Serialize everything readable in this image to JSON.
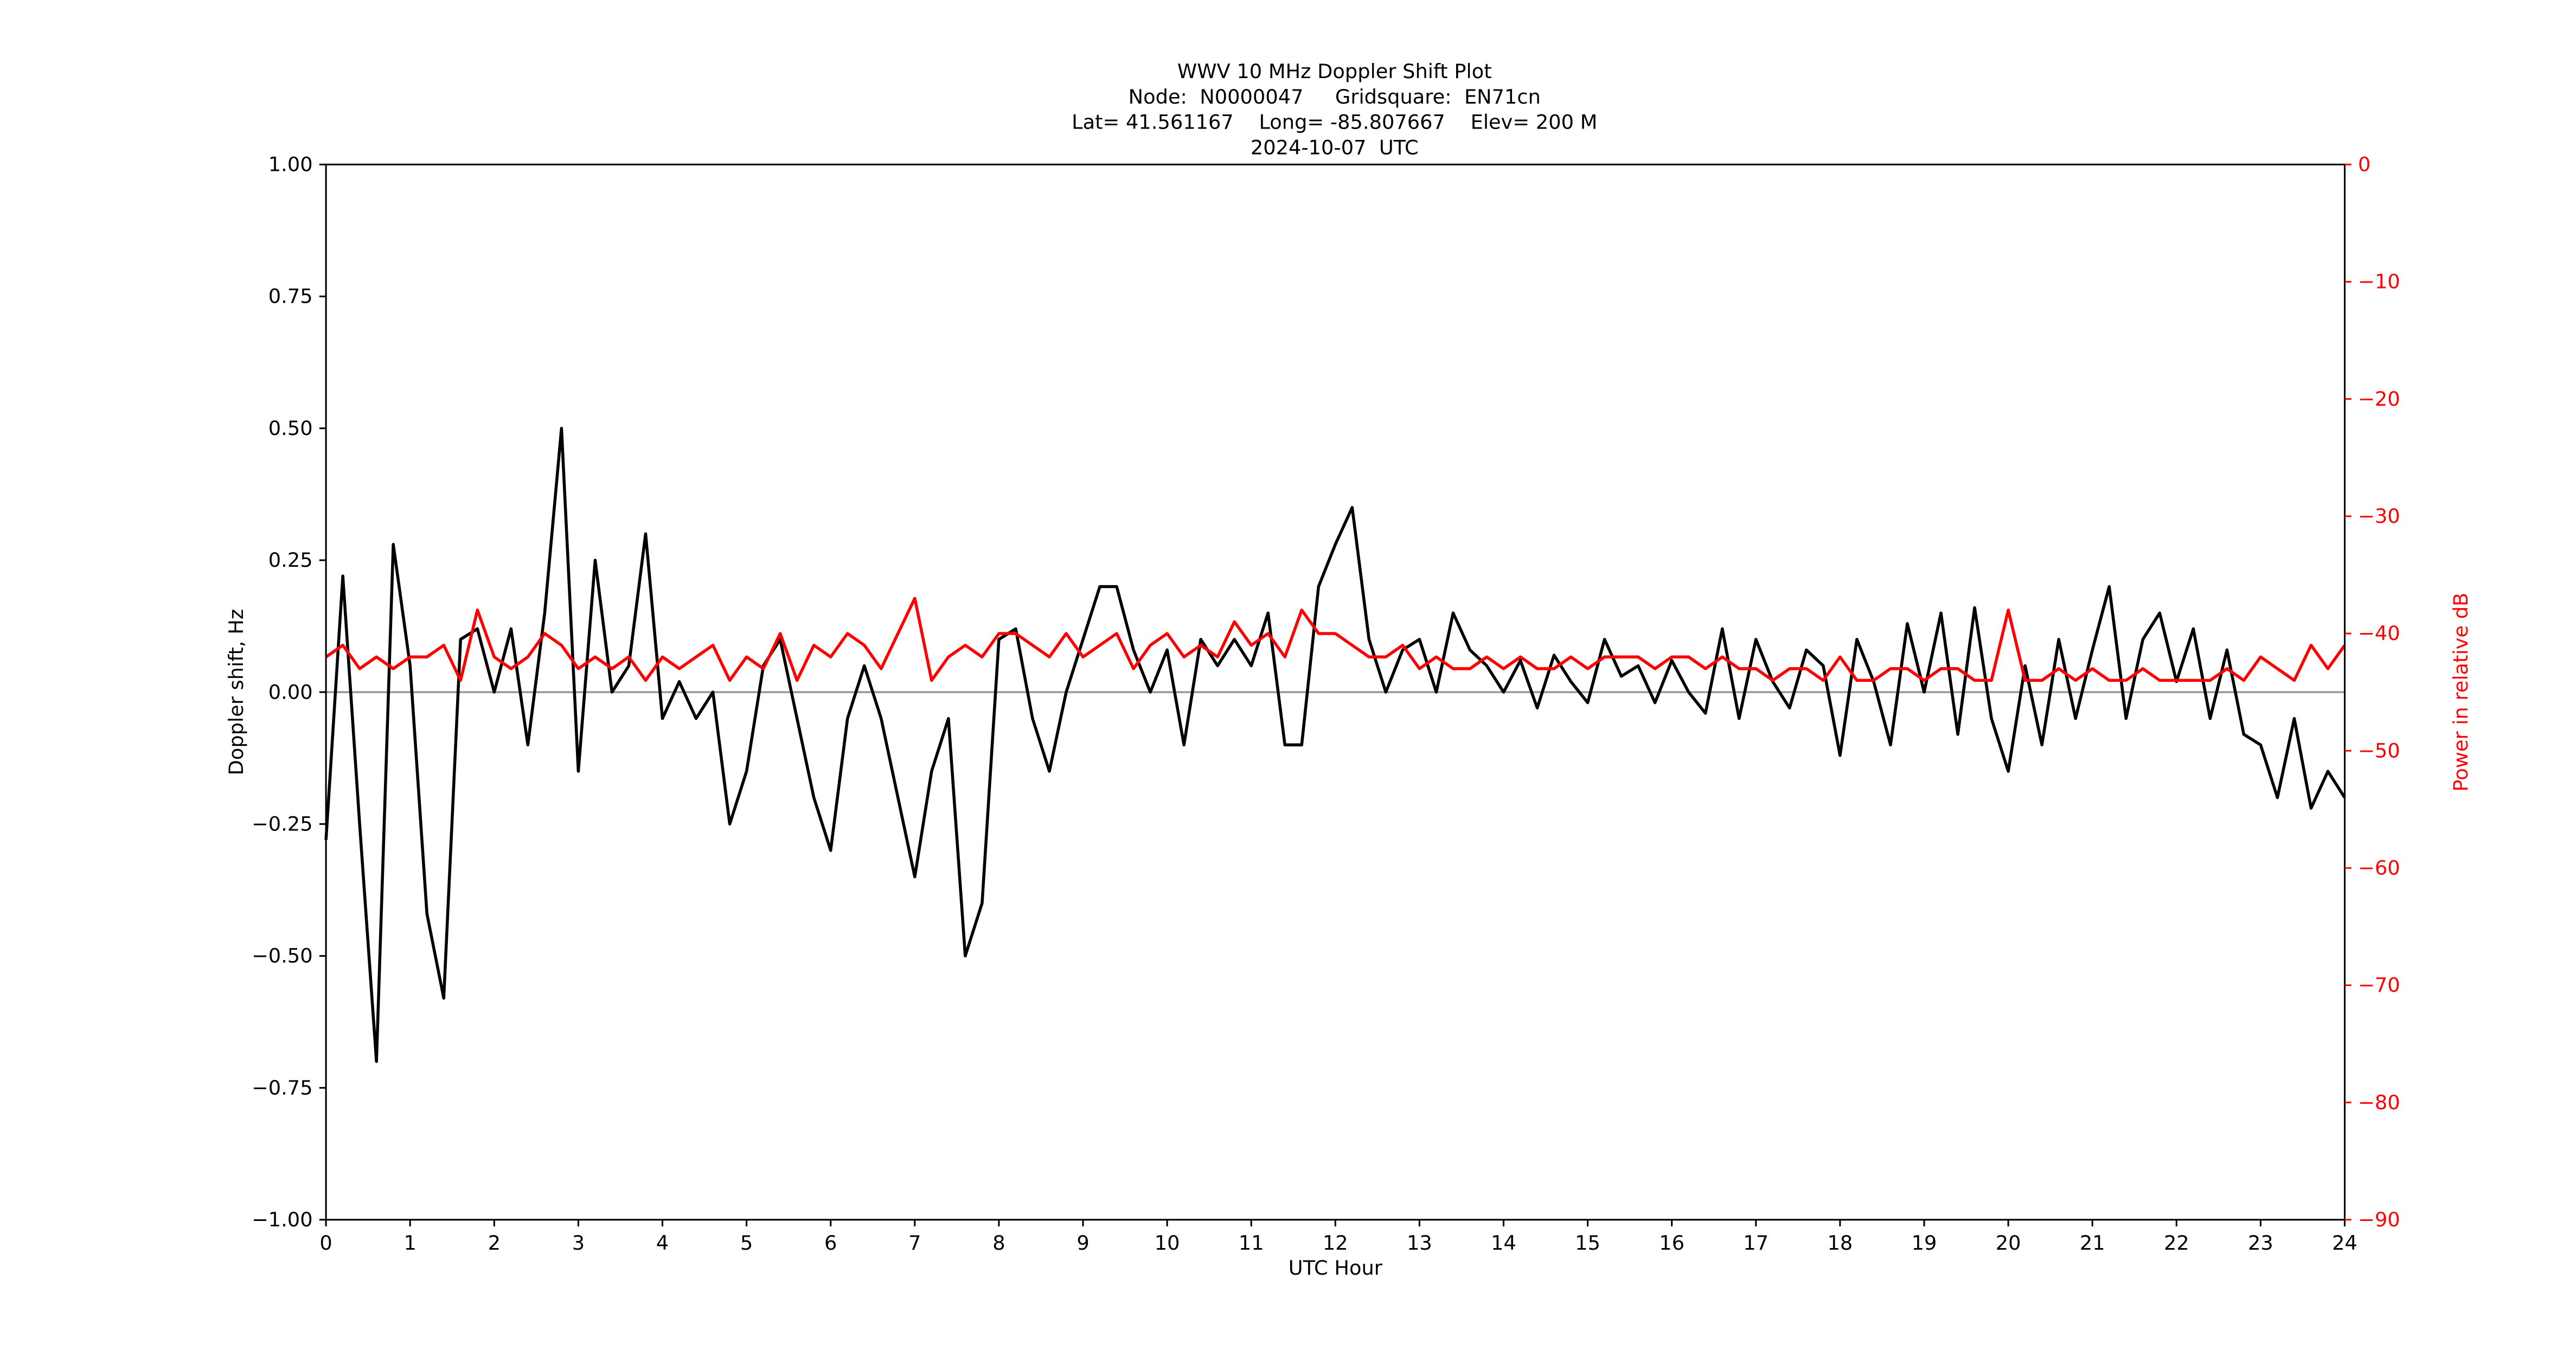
{
  "chart_data": {
    "type": "line",
    "title": [
      "WWV 10 MHz Doppler Shift Plot",
      "Node:  N0000047     Gridsquare:  EN71cn",
      "Lat= 41.561167    Long= -85.807667    Elev= 200 M",
      "2024-10-07  UTC"
    ],
    "x_label": "UTC Hour",
    "y_label": "Doppler shift, Hz",
    "y2_label": "Power in relative dB",
    "x": [
      0,
      0.2,
      0.4,
      0.6,
      0.8,
      1.0,
      1.2,
      1.4,
      1.6,
      1.8,
      2.0,
      2.2,
      2.4,
      2.6,
      2.8,
      3.0,
      3.2,
      3.4,
      3.6,
      3.8,
      4.0,
      4.2,
      4.4,
      4.6,
      4.8,
      5.0,
      5.2,
      5.4,
      5.6,
      5.8,
      6.0,
      6.2,
      6.4,
      6.6,
      6.8,
      7.0,
      7.2,
      7.4,
      7.6,
      7.8,
      8.0,
      8.2,
      8.4,
      8.6,
      8.8,
      9.0,
      9.2,
      9.4,
      9.6,
      9.8,
      10.0,
      10.2,
      10.4,
      10.6,
      10.8,
      11.0,
      11.2,
      11.4,
      11.6,
      11.8,
      12.0,
      12.2,
      12.4,
      12.6,
      12.8,
      13.0,
      13.2,
      13.4,
      13.6,
      13.8,
      14.0,
      14.2,
      14.4,
      14.6,
      14.8,
      15.0,
      15.2,
      15.4,
      15.6,
      15.8,
      16.0,
      16.2,
      16.4,
      16.6,
      16.8,
      17.0,
      17.2,
      17.4,
      17.6,
      17.8,
      18.0,
      18.2,
      18.4,
      18.6,
      18.8,
      19.0,
      19.2,
      19.4,
      19.6,
      19.8,
      20.0,
      20.2,
      20.4,
      20.6,
      20.8,
      21.0,
      21.2,
      21.4,
      21.6,
      21.8,
      22.0,
      22.2,
      22.4,
      22.6,
      22.8,
      23.0,
      23.2,
      23.4,
      23.6,
      23.8,
      24.0
    ],
    "series": [
      {
        "color": "#000000",
        "values": [
          -0.28,
          0.22,
          -0.25,
          -0.7,
          0.28,
          0.05,
          -0.42,
          -0.58,
          0.1,
          0.12,
          0.0,
          0.12,
          -0.1,
          0.15,
          0.5,
          -0.15,
          0.25,
          0.0,
          0.05,
          0.3,
          -0.05,
          0.02,
          -0.05,
          0.0,
          -0.25,
          -0.15,
          0.05,
          0.1,
          -0.05,
          -0.2,
          -0.3,
          -0.05,
          0.05,
          -0.05,
          -0.2,
          -0.35,
          -0.15,
          -0.05,
          -0.5,
          -0.4,
          0.1,
          0.12,
          -0.05,
          -0.15,
          0.0,
          0.1,
          0.2,
          0.2,
          0.08,
          0.0,
          0.08,
          -0.1,
          0.1,
          0.05,
          0.1,
          0.05,
          0.15,
          -0.1,
          -0.1,
          0.2,
          0.28,
          0.35,
          0.1,
          0.0,
          0.08,
          0.1,
          0.0,
          0.15,
          0.08,
          0.05,
          0.0,
          0.06,
          -0.03,
          0.07,
          0.02,
          -0.02,
          0.1,
          0.03,
          0.05,
          -0.02,
          0.06,
          0.0,
          -0.04,
          0.12,
          -0.05,
          0.1,
          0.02,
          -0.03,
          0.08,
          0.05,
          -0.12,
          0.1,
          0.02,
          -0.1,
          0.13,
          0.0,
          0.15,
          -0.08,
          0.16,
          -0.05,
          -0.15,
          0.05,
          -0.1,
          0.1,
          -0.05,
          0.08,
          0.2,
          -0.05,
          0.1,
          0.15,
          0.02,
          0.12,
          -0.05,
          0.08,
          -0.08,
          -0.1,
          -0.2,
          -0.05,
          -0.22,
          -0.15,
          -0.2
        ],
        "axis": "y"
      },
      {
        "color": "#ff0000",
        "values": [
          -42,
          -41,
          -43,
          -42,
          -43,
          -42,
          -42,
          -41,
          -44,
          -38,
          -42,
          -43,
          -42,
          -40,
          -41,
          -43,
          -42,
          -43,
          -42,
          -44,
          -42,
          -43,
          -42,
          -41,
          -44,
          -42,
          -43,
          -40,
          -44,
          -41,
          -42,
          -40,
          -41,
          -43,
          -40,
          -37,
          -44,
          -42,
          -41,
          -42,
          -40,
          -40,
          -41,
          -42,
          -40,
          -42,
          -41,
          -40,
          -43,
          -41,
          -40,
          -42,
          -41,
          -42,
          -39,
          -41,
          -40,
          -42,
          -38,
          -40,
          -40,
          -41,
          -42,
          -42,
          -41,
          -43,
          -42,
          -43,
          -43,
          -42,
          -43,
          -42,
          -43,
          -43,
          -42,
          -43,
          -42,
          -42,
          -42,
          -43,
          -42,
          -42,
          -43,
          -42,
          -43,
          -43,
          -44,
          -43,
          -43,
          -44,
          -42,
          -44,
          -44,
          -43,
          -43,
          -44,
          -43,
          -43,
          -44,
          -44,
          -38,
          -44,
          -44,
          -43,
          -44,
          -43,
          -44,
          -44,
          -43,
          -44,
          -44,
          -44,
          -44,
          -43,
          -44,
          -42,
          -43,
          -44,
          -41,
          -43,
          -41
        ],
        "axis": "y2"
      }
    ],
    "xlim": [
      0,
      24
    ],
    "xticks": [
      0,
      1,
      2,
      3,
      4,
      5,
      6,
      7,
      8,
      9,
      10,
      11,
      12,
      13,
      14,
      15,
      16,
      17,
      18,
      19,
      20,
      21,
      22,
      23,
      24
    ],
    "ylim": [
      -1,
      1
    ],
    "yticks": [
      {
        "value": -1,
        "label": "−1.00"
      },
      {
        "value": -0.75,
        "label": "−0.75"
      },
      {
        "value": -0.5,
        "label": "−0.50"
      },
      {
        "value": -0.25,
        "label": "−0.25"
      },
      {
        "value": 0,
        "label": "0.00"
      },
      {
        "value": 0.25,
        "label": "0.25"
      },
      {
        "value": 0.5,
        "label": "0.50"
      },
      {
        "value": 0.75,
        "label": "0.75"
      },
      {
        "value": 1,
        "label": "1.00"
      }
    ],
    "y2lim": [
      -90,
      0
    ],
    "y2ticks": [
      {
        "value": -90,
        "label": "−90"
      },
      {
        "value": -80,
        "label": "−80"
      },
      {
        "value": -70,
        "label": "−70"
      },
      {
        "value": -60,
        "label": "−60"
      },
      {
        "value": -50,
        "label": "−50"
      },
      {
        "value": -40,
        "label": "−40"
      },
      {
        "value": -30,
        "label": "−30"
      },
      {
        "value": -20,
        "label": "−20"
      },
      {
        "value": -10,
        "label": "−10"
      },
      {
        "value": 0,
        "label": "0"
      }
    ],
    "zero_line_color": "#999999",
    "y2_color": "#ff0000"
  }
}
